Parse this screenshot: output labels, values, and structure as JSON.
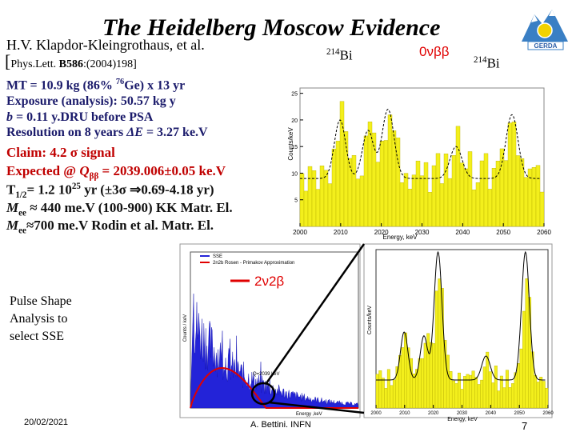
{
  "title": "The Heidelberg Moscow Evidence",
  "author": "H.V. Klapdor-Kleingrothaus, et al.",
  "reference": [
    "[",
    "Phys.Lett. ",
    "B586",
    ":(2004)198]"
  ],
  "facts": [
    [
      "MT = 10.9 kg (86% ",
      "76",
      "Ge) x 13 yr"
    ],
    [
      "Exposure (analysis): 50.57 kg y"
    ],
    [
      "b",
      " = 0.11 y.DRU before PSA"
    ],
    [
      "Resolution on 8 years ",
      "ΔE",
      " = 3.27 ke.V"
    ]
  ],
  "claims": [
    [
      "Claim: 4.2 ",
      "σ",
      " signal"
    ],
    [
      "Expected @ ",
      "Q",
      "ββ",
      " = 2039.006±0.05  ke.V"
    ],
    [
      "T",
      "1/2",
      "= 1.2 10",
      "25",
      " yr (±3σ ⇒0.69-4.18 yr)"
    ],
    [
      "M",
      "ee",
      " ≈ 440 me.V (100-900) KK Matr. El."
    ],
    [
      "M",
      "ee",
      "≈700 me.V Rodin et al. Matr. El."
    ]
  ],
  "annotations": {
    "bi_left": [
      "214",
      "Bi"
    ],
    "signal": "0νββ",
    "bi_right": [
      "214",
      "Bi"
    ],
    "two_nu": "2ν2β"
  },
  "psa_note": [
    "Pulse Shape",
    "Analysis to",
    "select SSE"
  ],
  "footer": {
    "date": "20/02/2021",
    "author": "A. Bettini. INFN",
    "page": "7"
  },
  "logo": "GERDA",
  "figures": {
    "top": {
      "x_label": "Energy, keV",
      "y_label": "Counts/keV",
      "xticks": [
        2000,
        2010,
        2020,
        2030,
        2040,
        2050,
        2060
      ],
      "yticks": [
        5,
        10,
        15,
        20,
        25
      ]
    },
    "spectrum": {
      "legend": [
        "SSE",
        "2n2b Rosen - Primakov Approximation"
      ],
      "x_label": "Energy ,keV",
      "y_label": "Counts / keV",
      "annotation": "Q=2039 keV"
    },
    "bottom": {
      "x_label": "Energy, keV",
      "y_label": "Counts/keV",
      "xticks": [
        2000,
        2010,
        2020,
        2030,
        2040,
        2050,
        2060
      ]
    }
  }
}
